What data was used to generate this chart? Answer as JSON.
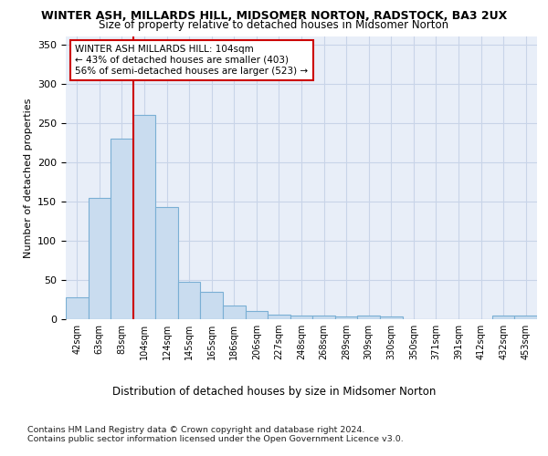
{
  "title": "WINTER ASH, MILLARDS HILL, MIDSOMER NORTON, RADSTOCK, BA3 2UX",
  "subtitle": "Size of property relative to detached houses in Midsomer Norton",
  "xlabel": "Distribution of detached houses by size in Midsomer Norton",
  "ylabel": "Number of detached properties",
  "footer_line1": "Contains HM Land Registry data © Crown copyright and database right 2024.",
  "footer_line2": "Contains public sector information licensed under the Open Government Licence v3.0.",
  "annotation_line1": "WINTER ASH MILLARDS HILL: 104sqm",
  "annotation_line2": "← 43% of detached houses are smaller (403)",
  "annotation_line3": "56% of semi-detached houses are larger (523) →",
  "bar_color": "#c9dcef",
  "bar_edge_color": "#7aafd4",
  "marker_color": "#cc0000",
  "categories": [
    "42sqm",
    "63sqm",
    "83sqm",
    "104sqm",
    "124sqm",
    "145sqm",
    "165sqm",
    "186sqm",
    "206sqm",
    "227sqm",
    "248sqm",
    "268sqm",
    "289sqm",
    "309sqm",
    "330sqm",
    "350sqm",
    "371sqm",
    "391sqm",
    "412sqm",
    "432sqm",
    "453sqm"
  ],
  "values": [
    28,
    155,
    230,
    260,
    143,
    48,
    35,
    17,
    10,
    6,
    5,
    5,
    3,
    5,
    3,
    0,
    0,
    0,
    0,
    5,
    5
  ],
  "ylim": [
    0,
    360
  ],
  "marker_bin_index": 3,
  "background_color": "#e8eef8",
  "grid_color": "#c8d4e8"
}
